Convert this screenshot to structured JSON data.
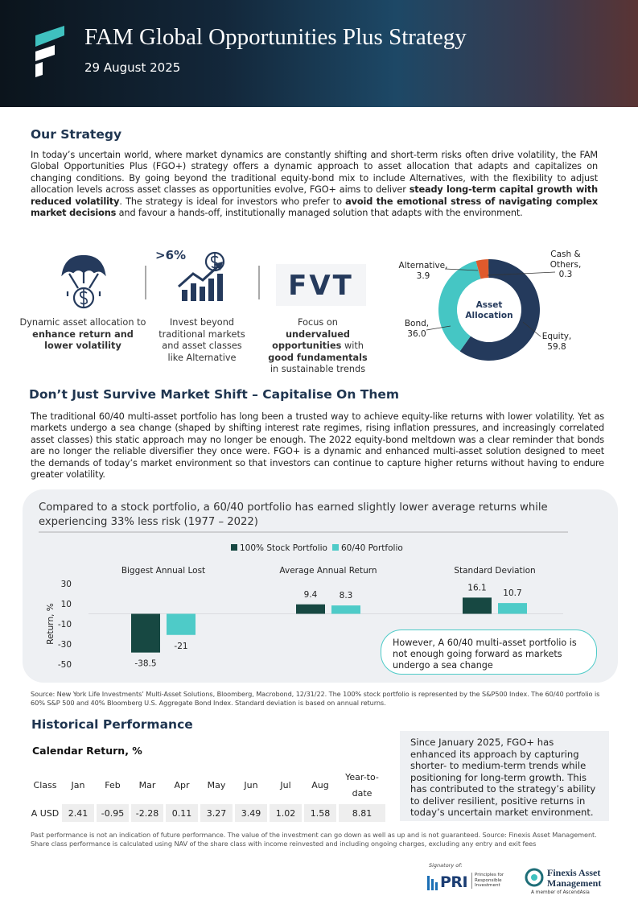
{
  "header": {
    "title": "FAM Global Opportunities Plus Strategy",
    "date": "29 August 2025"
  },
  "strategy": {
    "heading": "Our Strategy",
    "paragraph": [
      {
        "text": "In today’s uncertain world, where market dynamics are constantly shifting and short-term risks often drive volatility, the FAM Global Opportunities Plus (FGO+) strategy offers a dynamic approach to asset allocation that adapts and capitalizes on changing conditions. By going beyond the traditional equity-bond mix to include Alternatives, with the flexibility to adjust allocation levels across asset classes as opportunities evolve, FGO+ aims to deliver "
      },
      {
        "text": "steady long-term capital growth with reduced volatility",
        "bold": true
      },
      {
        "text": ". The strategy is ideal for investors who prefer to "
      },
      {
        "text": "avoid the emotional stress of navigating complex market decisions",
        "bold": true
      },
      {
        "text": " and favour a hands-off, institutionally managed solution that adapts with the environment."
      }
    ]
  },
  "features": [
    {
      "runs": [
        {
          "text": "Dynamic asset allocation to "
        },
        {
          "text": "enhance return and lower volatility",
          "bold": true
        }
      ]
    },
    {
      "icon_text": ">6%",
      "runs": [
        {
          "text": "Invest beyond traditional markets and asset classes like Alternative"
        }
      ]
    },
    {
      "icon_text": "FVT",
      "runs": [
        {
          "text": "Focus on "
        },
        {
          "text": "undervalued opportunities",
          "bold": true
        },
        {
          "text": " with "
        },
        {
          "text": "good fundamentals",
          "bold": true
        },
        {
          "text": " in sustainable trends"
        }
      ]
    }
  ],
  "shift": {
    "heading": "Don’t Just Survive Market Shift – Capitalise On Them",
    "paragraph": "The traditional 60/40 multi-asset portfolio has long been a trusted way to achieve equity-like returns with lower volatility. Yet as markets undergo a sea change (shaped by shifting interest rate regimes, rising inflation pressures, and increasingly correlated asset classes) this static approach may no longer be enough. The 2022 equity-bond meltdown was a clear reminder that bonds are no longer the reliable diversifier they once were. FGO+ is a dynamic and enhanced multi-asset solution designed to meet the demands of today’s market environment so that investors can continue to capture higher returns without having to endure greater volatility.",
    "source": "Source: New York Life Investments’ Multi-Asset Solutions, Bloomberg, Macrobond, 12/31/22. The 100% stock portfolio is represented by the S&P500 Index. The 60/40 portfolio is 60% S&P 500 and 40% Bloomberg U.S. Aggregate Bond Index. Standard deviation is based on annual returns."
  },
  "chart_data": [
    {
      "type": "donut",
      "center_label": "Asset Allocation",
      "categories": [
        "Equity,",
        "Bond,",
        "Alternative,",
        "Cash & Others,"
      ],
      "values": [
        59.8,
        36.0,
        3.9,
        0.3
      ],
      "value_labels": [
        "59.8",
        "36.0",
        "3.9",
        "0.3"
      ],
      "colors": [
        "#243a5c",
        "#45c6c4",
        "#df5a2c",
        "#4a4a4a"
      ]
    },
    {
      "type": "bar",
      "title": "Compared to a stock portfolio, a 60/40 portfolio has earned slightly lower average returns while experiencing 33% less risk (1977 – 2022)",
      "categories": [
        "Biggest Annual Lost",
        "Average Annual Return",
        "Standard Deviation"
      ],
      "series": [
        {
          "name": "100% Stock Portfolio",
          "color": "#174842",
          "values": [
            -38.5,
            9.4,
            16.1
          ]
        },
        {
          "name": "60/40 Portfolio",
          "color": "#4ecbc8",
          "values": [
            -21,
            8.3,
            10.7
          ]
        }
      ],
      "y_label": "Return, %",
      "ylim": [
        -50,
        30
      ],
      "yticks": [
        30,
        10,
        -10,
        -30,
        -50
      ],
      "grid": false,
      "annotation": "However, A 60/40 multi-asset portfolio is not enough going forward as markets undergo a sea change"
    }
  ],
  "performance": {
    "heading": "Historical Performance",
    "subheading": "Calendar Return, %",
    "table": {
      "header": [
        "Class",
        "Jan",
        "Feb",
        "Mar",
        "Apr",
        "May",
        "Jun",
        "Jul",
        "Aug",
        "Year-to-date"
      ],
      "rows": [
        [
          "A USD",
          2.41,
          -0.95,
          -2.28,
          0.11,
          3.27,
          3.49,
          1.02,
          1.58,
          8.81
        ]
      ]
    },
    "note": "Since January 2025, FGO+ has enhanced its approach by capturing shorter- to medium-term trends while positioning for long-term growth. This has contributed to the strategy’s ability to deliver resilient, positive returns in today’s uncertain market environment.",
    "disclaimer": "Past performance is not an indication of future performance. The value of the investment can go down as well as up and is not guaranteed. Source: Finexis Asset Management. Share class performance is calculated using NAV of the share class with income reinvested and including ongoing charges, excluding any entry and exit fees"
  },
  "footer": {
    "signatory": "Signatory of:",
    "pri": "PRI",
    "pri_full": "Principles for Responsible Investment",
    "company": "Finexis Asset Management",
    "member": "A member of AscendAsia"
  }
}
